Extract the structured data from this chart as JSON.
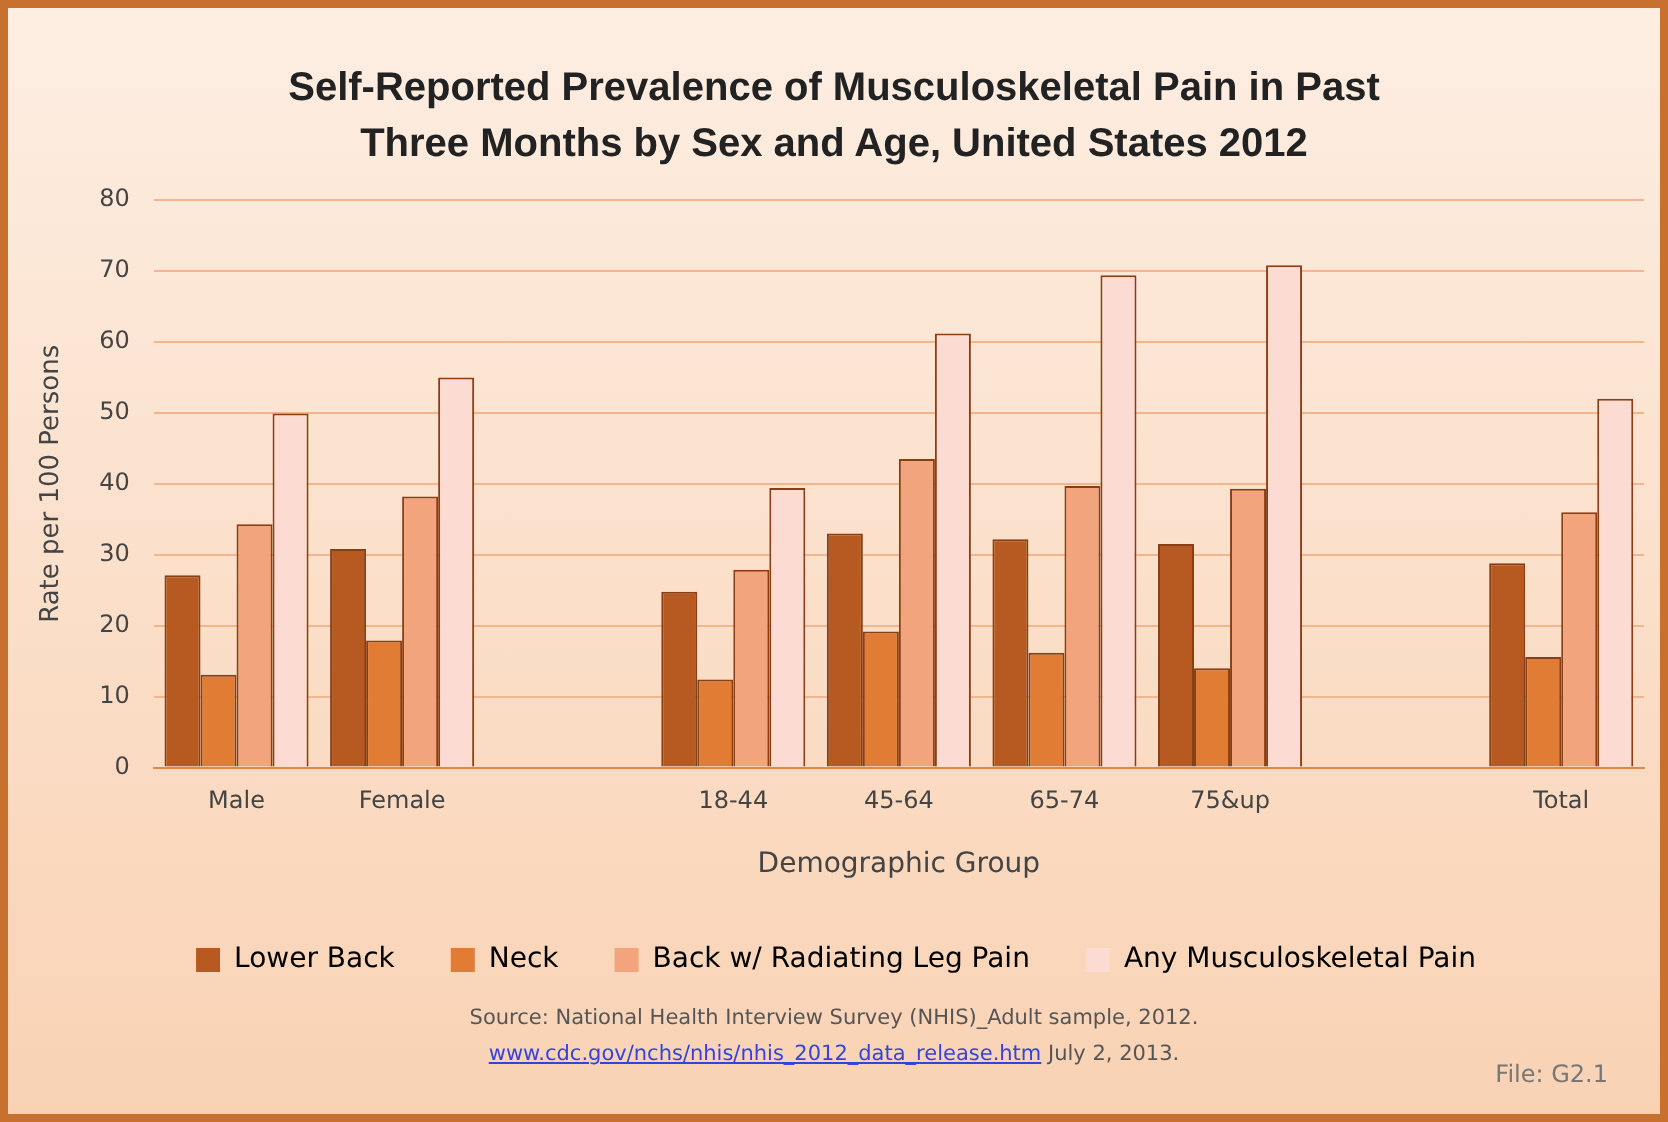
{
  "chart_data": {
    "type": "bar",
    "title": "Self-Reported Prevalence of Musculoskeletal Pain in Past Three Months by Sex and Age, United States 2012",
    "xlabel": "Demographic Group",
    "ylabel": "Rate per 100 Persons",
    "categories": [
      "Male",
      "Female",
      null,
      "18-44",
      "45-64",
      "65-74",
      "75&up",
      null,
      "Total"
    ],
    "series": [
      {
        "name": "Lower Back",
        "color": "#b65a22",
        "values": [
          27.1,
          30.8,
          null,
          24.8,
          33.0,
          32.2,
          31.5,
          null,
          28.8
        ]
      },
      {
        "name": "Neck",
        "color": "#e07c34",
        "values": [
          13.1,
          17.9,
          null,
          12.4,
          19.2,
          16.2,
          14.0,
          null,
          15.6
        ]
      },
      {
        "name": "Back w/ Radiating Leg Pain",
        "color": "#f2a47c",
        "values": [
          34.3,
          38.2,
          null,
          27.9,
          43.5,
          39.7,
          39.3,
          null,
          36.0
        ]
      },
      {
        "name": "Any Musculoskeletal Pain",
        "color": "#fcdcd2",
        "values": [
          49.9,
          55.0,
          null,
          39.4,
          61.2,
          69.4,
          70.8,
          null,
          52.0
        ]
      }
    ],
    "ylim": [
      0,
      80
    ],
    "yticks": [
      0,
      10,
      20,
      30,
      40,
      50,
      60,
      70,
      80
    ],
    "grid": "y",
    "legend": "bottom",
    "annotations": [
      "Source: National Health Interview Survey (NHIS)_Adult sample, 2012.",
      "www.cdc.gov/nchs/nhis/nhis_2012_data_release.htm",
      "July 2, 2013.",
      "File: G2.1"
    ]
  }
}
